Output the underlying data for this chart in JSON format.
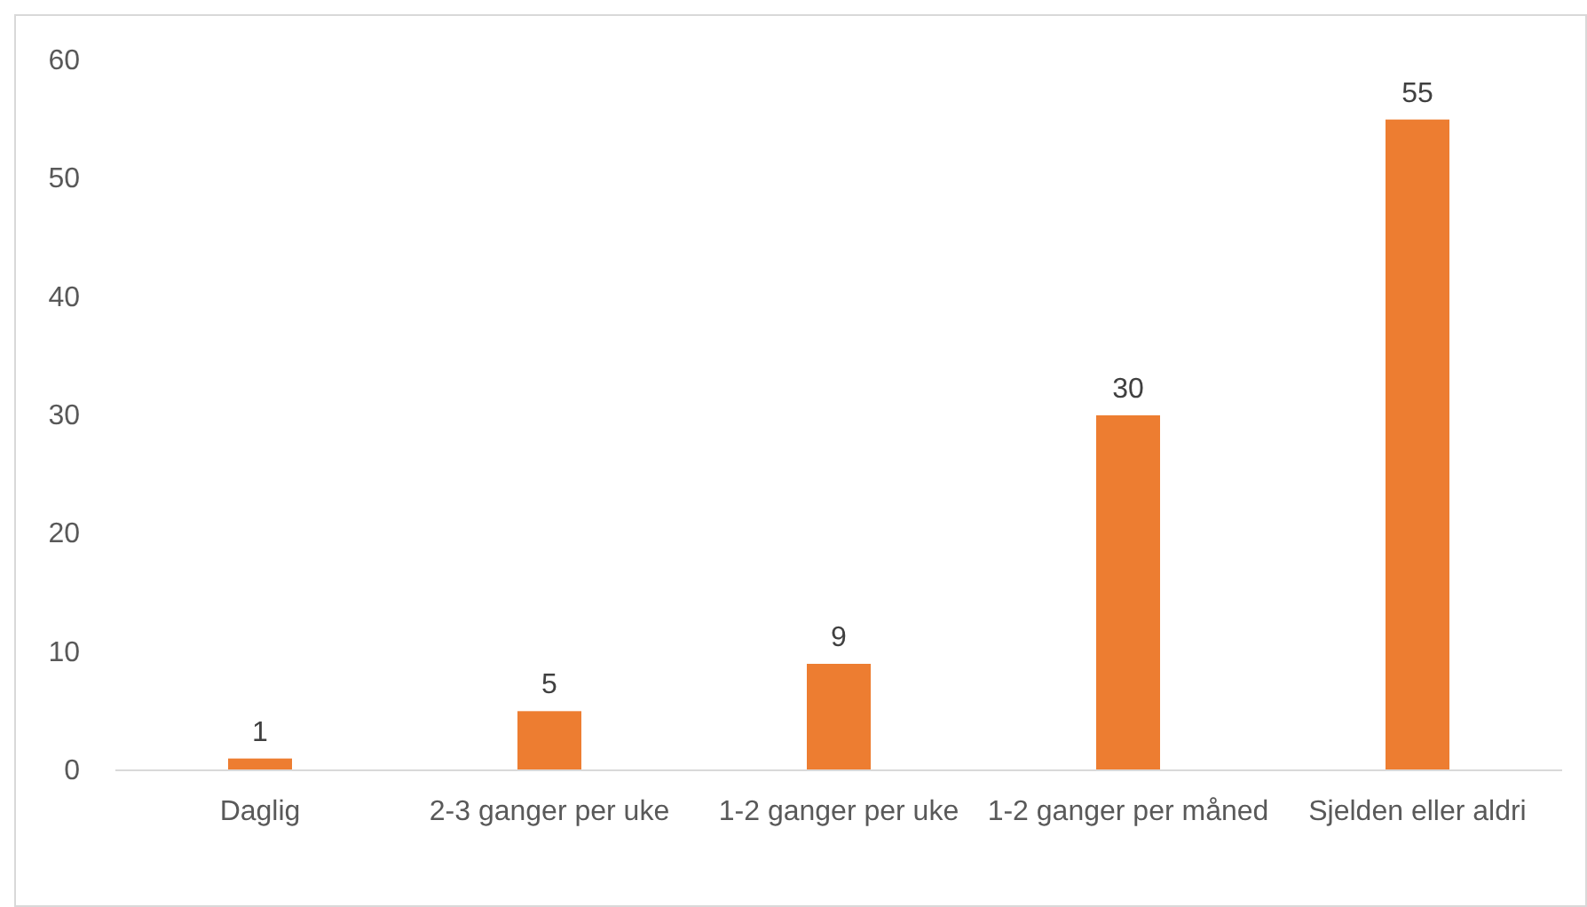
{
  "chart_data": {
    "type": "bar",
    "categories": [
      "Daglig",
      "2-3 ganger per uke",
      "1-2 ganger per uke",
      "1-2 ganger per måned",
      "Sjelden eller aldri"
    ],
    "values": [
      1,
      5,
      9,
      30,
      55
    ],
    "color": "#ed7d31",
    "ylim": [
      0,
      60
    ],
    "yticks": [
      0,
      10,
      20,
      30,
      40,
      50,
      60
    ],
    "grid": false,
    "data_labels": true
  }
}
